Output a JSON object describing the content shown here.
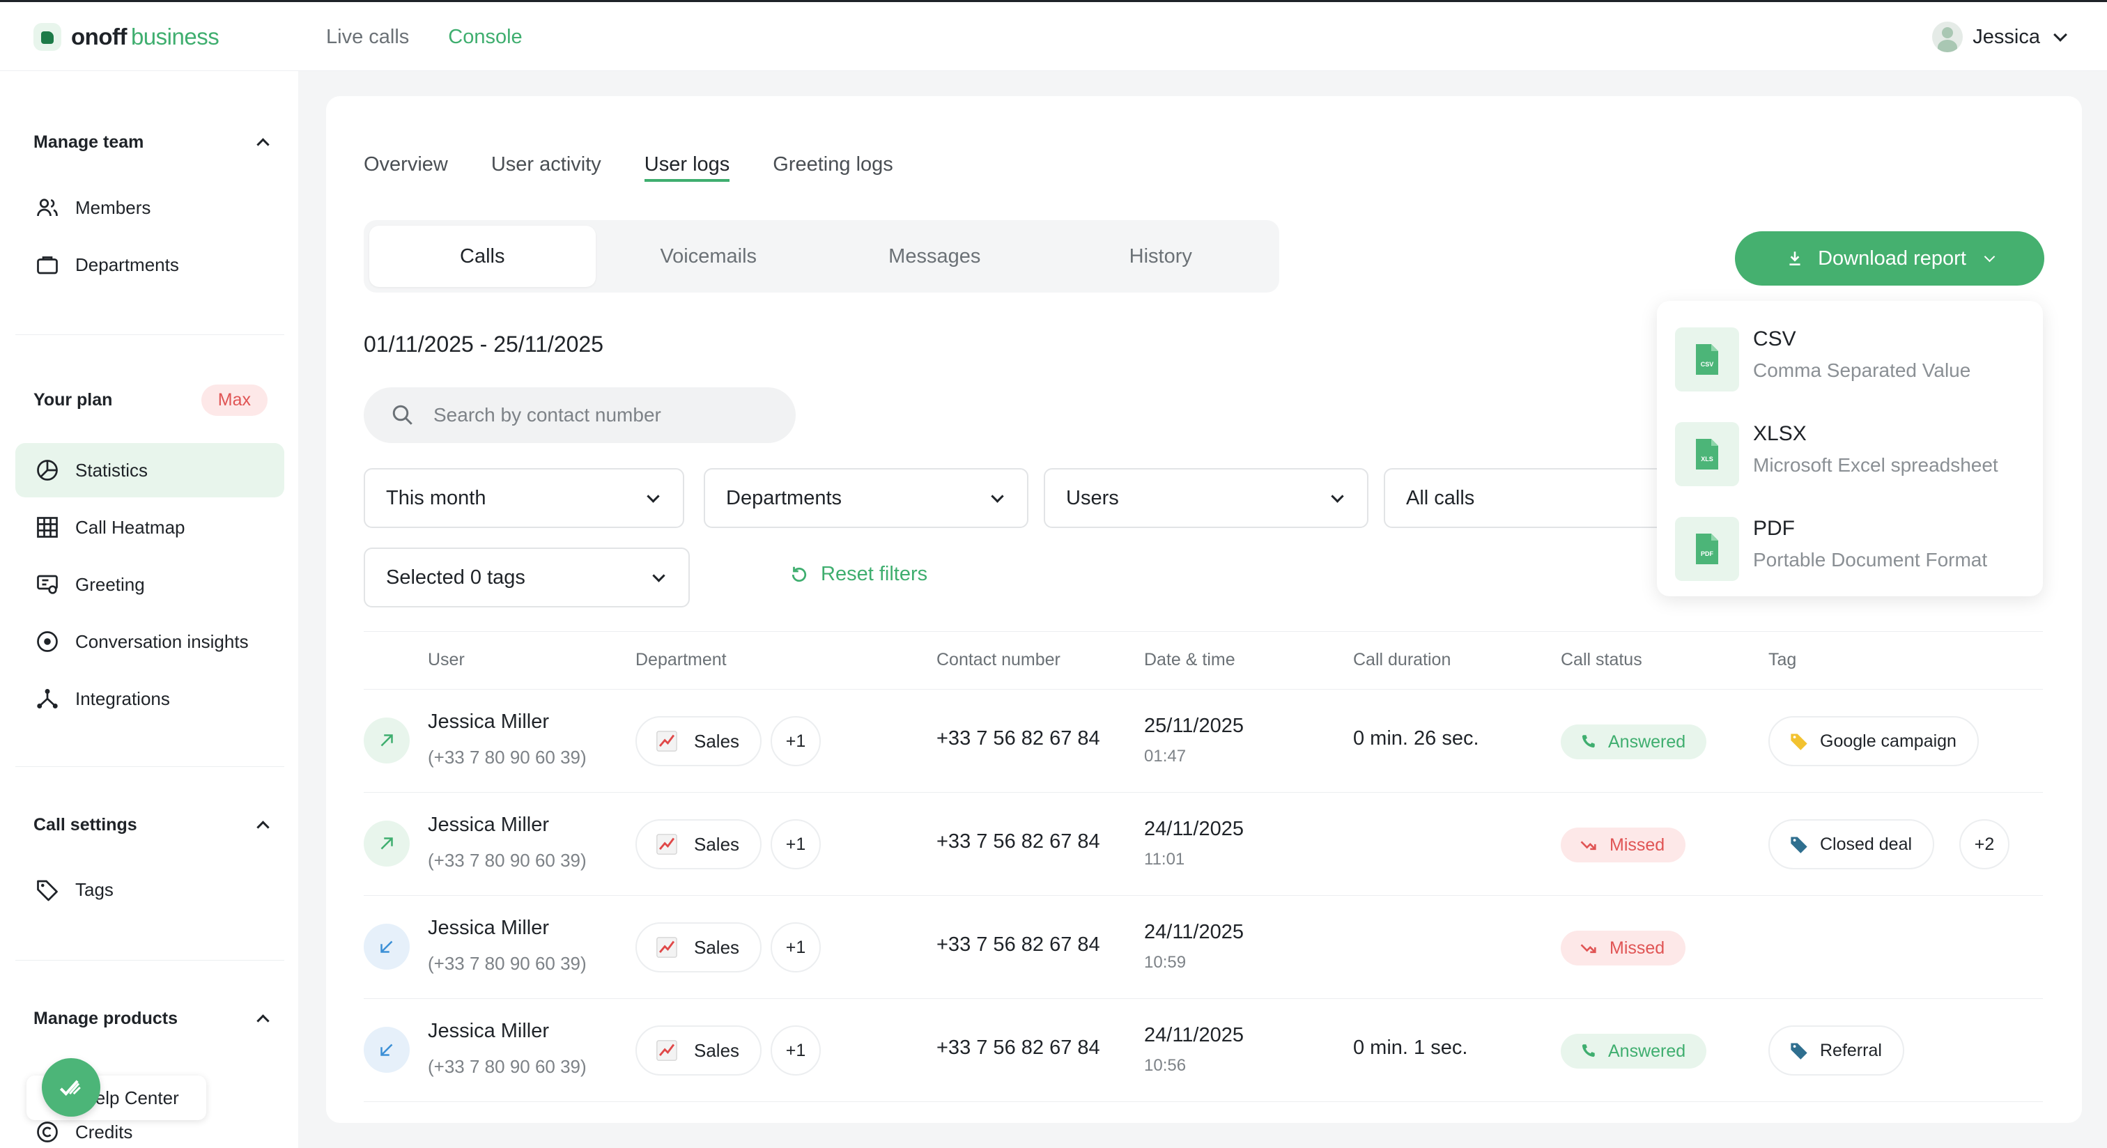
{
  "brand": {
    "name_bold": "onoff",
    "name_light": "business",
    "accent": "#3fae6f"
  },
  "top_nav": {
    "live_calls": "Live calls",
    "console": "Console"
  },
  "user": {
    "name": "Jessica"
  },
  "sidebar": {
    "manage_team": {
      "title": "Manage team",
      "items": [
        "Members",
        "Departments"
      ]
    },
    "your_plan": {
      "title": "Your plan",
      "badge": "Max",
      "items": [
        "Statistics",
        "Call Heatmap",
        "Greeting",
        "Conversation insights",
        "Integrations"
      ]
    },
    "call_settings": {
      "title": "Call settings",
      "items": [
        "Tags"
      ]
    },
    "manage_products": {
      "title": "Manage products",
      "items": [
        "Help Center",
        "Credits"
      ]
    }
  },
  "tabs": [
    "Overview",
    "User activity",
    "User logs",
    "Greeting logs"
  ],
  "segments": [
    "Calls",
    "Voicemails",
    "Messages",
    "History"
  ],
  "download_button": "Download report",
  "download_menu": [
    {
      "label": "CSV",
      "desc": "Comma Separated Value",
      "icon_text": "CSV"
    },
    {
      "label": "XLSX",
      "desc": "Microsoft Excel spreadsheet",
      "icon_text": "XLS"
    },
    {
      "label": "PDF",
      "desc": "Portable Document Format",
      "icon_text": "PDF"
    }
  ],
  "date_range": "01/11/2025 - 25/11/2025",
  "search": {
    "placeholder": "Search by contact number"
  },
  "filters": {
    "period": "This month",
    "departments": "Departments",
    "users": "Users",
    "calls": "All calls",
    "tags": "Selected 0 tags",
    "reset": "Reset filters"
  },
  "table": {
    "headers": [
      "User",
      "Department",
      "Contact number",
      "Date & time",
      "Call duration",
      "Call status",
      "Tag"
    ],
    "rows": [
      {
        "direction": "outgoing",
        "user": "Jessica Miller",
        "phone": "(+33 7 80 90 60 39)",
        "department": "Sales",
        "dept_more": "+1",
        "contact": "+33 7 56 82 67 84",
        "date": "25/11/2025",
        "time": "01:47",
        "duration": "0 min. 26 sec.",
        "status": "Answered",
        "tag": "Google campaign",
        "tag_color": "#f2c230",
        "tag_more": ""
      },
      {
        "direction": "outgoing",
        "user": "Jessica Miller",
        "phone": "(+33 7 80 90 60 39)",
        "department": "Sales",
        "dept_more": "+1",
        "contact": "+33 7 56 82 67 84",
        "date": "24/11/2025",
        "time": "11:01",
        "duration": "",
        "status": "Missed",
        "tag": "Closed deal",
        "tag_color": "#2f6f8f",
        "tag_more": "+2"
      },
      {
        "direction": "incoming",
        "user": "Jessica Miller",
        "phone": "(+33 7 80 90 60 39)",
        "department": "Sales",
        "dept_more": "+1",
        "contact": "+33 7 56 82 67 84",
        "date": "24/11/2025",
        "time": "10:59",
        "duration": "",
        "status": "Missed",
        "tag": "",
        "tag_color": "",
        "tag_more": ""
      },
      {
        "direction": "incoming",
        "user": "Jessica Miller",
        "phone": "(+33 7 80 90 60 39)",
        "department": "Sales",
        "dept_more": "+1",
        "contact": "+33 7 56 82 67 84",
        "date": "24/11/2025",
        "time": "10:56",
        "duration": "0 min. 1 sec.",
        "status": "Answered",
        "tag": "Referral",
        "tag_color": "#2f6f8f",
        "tag_more": ""
      }
    ]
  }
}
